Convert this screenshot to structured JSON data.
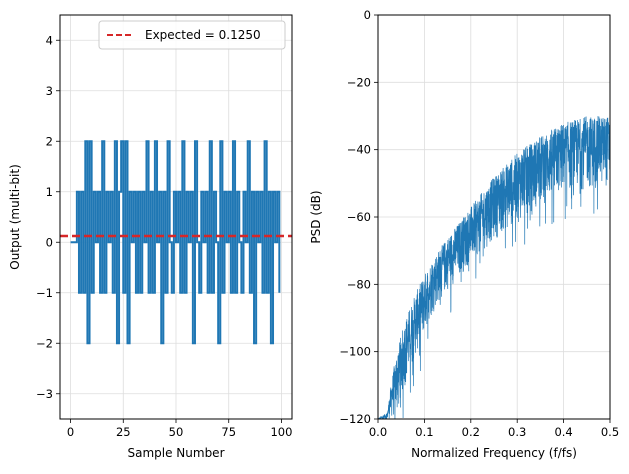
{
  "chart_data": [
    {
      "type": "line",
      "drawstyle": "steps",
      "xlabel": "Sample Number",
      "ylabel": "Output (multi-bit)",
      "xlim": [
        -5,
        105
      ],
      "ylim": [
        -3.5,
        4.5
      ],
      "xticks": [
        0,
        25,
        50,
        75,
        100
      ],
      "yticks": [
        -3,
        -2,
        -1,
        0,
        1,
        2,
        3,
        4
      ],
      "xtick_labels": [
        "0",
        "25",
        "50",
        "75",
        "100"
      ],
      "ytick_labels": [
        "−3",
        "−2",
        "−1",
        "0",
        "1",
        "2",
        "3",
        "4"
      ],
      "grid": true,
      "series": [
        {
          "name": "Output",
          "color": "#1f77b4",
          "x": [
            0,
            1,
            2,
            3,
            4,
            5,
            6,
            7,
            8,
            9,
            10,
            11,
            12,
            13,
            14,
            15,
            16,
            17,
            18,
            19,
            20,
            21,
            22,
            23,
            24,
            25,
            26,
            27,
            28,
            29,
            30,
            31,
            32,
            33,
            34,
            35,
            36,
            37,
            38,
            39,
            40,
            41,
            42,
            43,
            44,
            45,
            46,
            47,
            48,
            49,
            50,
            51,
            52,
            53,
            54,
            55,
            56,
            57,
            58,
            59,
            60,
            61,
            62,
            63,
            64,
            65,
            66,
            67,
            68,
            69,
            70,
            71,
            72,
            73,
            74,
            75,
            76,
            77,
            78,
            79,
            80,
            81,
            82,
            83,
            84,
            85,
            86,
            87,
            88,
            89,
            90,
            91,
            92,
            93,
            94,
            95,
            96,
            97,
            98,
            99
          ],
          "values": [
            0,
            0,
            0,
            1,
            -1,
            1,
            -1,
            2,
            -2,
            2,
            -1,
            1,
            0,
            1,
            -1,
            2,
            -1,
            1,
            0,
            1,
            -1,
            2,
            -2,
            1,
            2,
            -1,
            2,
            -2,
            1,
            0,
            1,
            -1,
            1,
            -1,
            1,
            0,
            2,
            -1,
            1,
            -1,
            2,
            0,
            1,
            -2,
            1,
            -1,
            2,
            0,
            -1,
            1,
            0,
            1,
            -1,
            2,
            -1,
            1,
            0,
            1,
            -2,
            2,
            0,
            -1,
            1,
            0,
            1,
            -1,
            2,
            -1,
            1,
            0,
            -2,
            2,
            -1,
            1,
            0,
            1,
            -1,
            2,
            -1,
            1,
            0,
            -1,
            1,
            0,
            2,
            -1,
            1,
            -2,
            1,
            0,
            1,
            -1,
            2,
            -1,
            1,
            -2,
            1,
            0,
            1,
            -1
          ]
        },
        {
          "name": "Expected = 0.1250",
          "color": "#d62728",
          "style": "dashed",
          "y": 0.125
        }
      ],
      "legend": {
        "entries": [
          "Expected = 0.1250"
        ],
        "placement": "top-right"
      }
    },
    {
      "type": "line",
      "xlabel": "Normalized Frequency (f/fs)",
      "ylabel": "PSD (dB)",
      "xlim": [
        0.0,
        0.5
      ],
      "ylim": [
        -120,
        0
      ],
      "xticks": [
        0.0,
        0.1,
        0.2,
        0.3,
        0.4,
        0.5
      ],
      "yticks": [
        -120,
        -100,
        -80,
        -60,
        -40,
        -20,
        0
      ],
      "xtick_labels": [
        "0.0",
        "0.1",
        "0.2",
        "0.3",
        "0.4",
        "0.5"
      ],
      "ytick_labels": [
        "−120",
        "−100",
        "−80",
        "−60",
        "−40",
        "−20",
        "0"
      ],
      "grid": true,
      "series": [
        {
          "name": "PSD",
          "color": "#1f77b4",
          "envelope_x": [
            0.0,
            0.02,
            0.03,
            0.04,
            0.05,
            0.06,
            0.08,
            0.1,
            0.12,
            0.15,
            0.2,
            0.25,
            0.3,
            0.35,
            0.4,
            0.45,
            0.5
          ],
          "upper_db": [
            -120,
            -118,
            -108,
            -100,
            -95,
            -90,
            -83,
            -77,
            -72,
            -66,
            -57,
            -48,
            -41,
            -36,
            -32,
            -30,
            -30
          ],
          "lower_db": [
            -120,
            -120,
            -120,
            -120,
            -115,
            -110,
            -102,
            -95,
            -88,
            -82,
            -74,
            -67,
            -62,
            -57,
            -53,
            -52,
            -51
          ]
        }
      ]
    }
  ]
}
